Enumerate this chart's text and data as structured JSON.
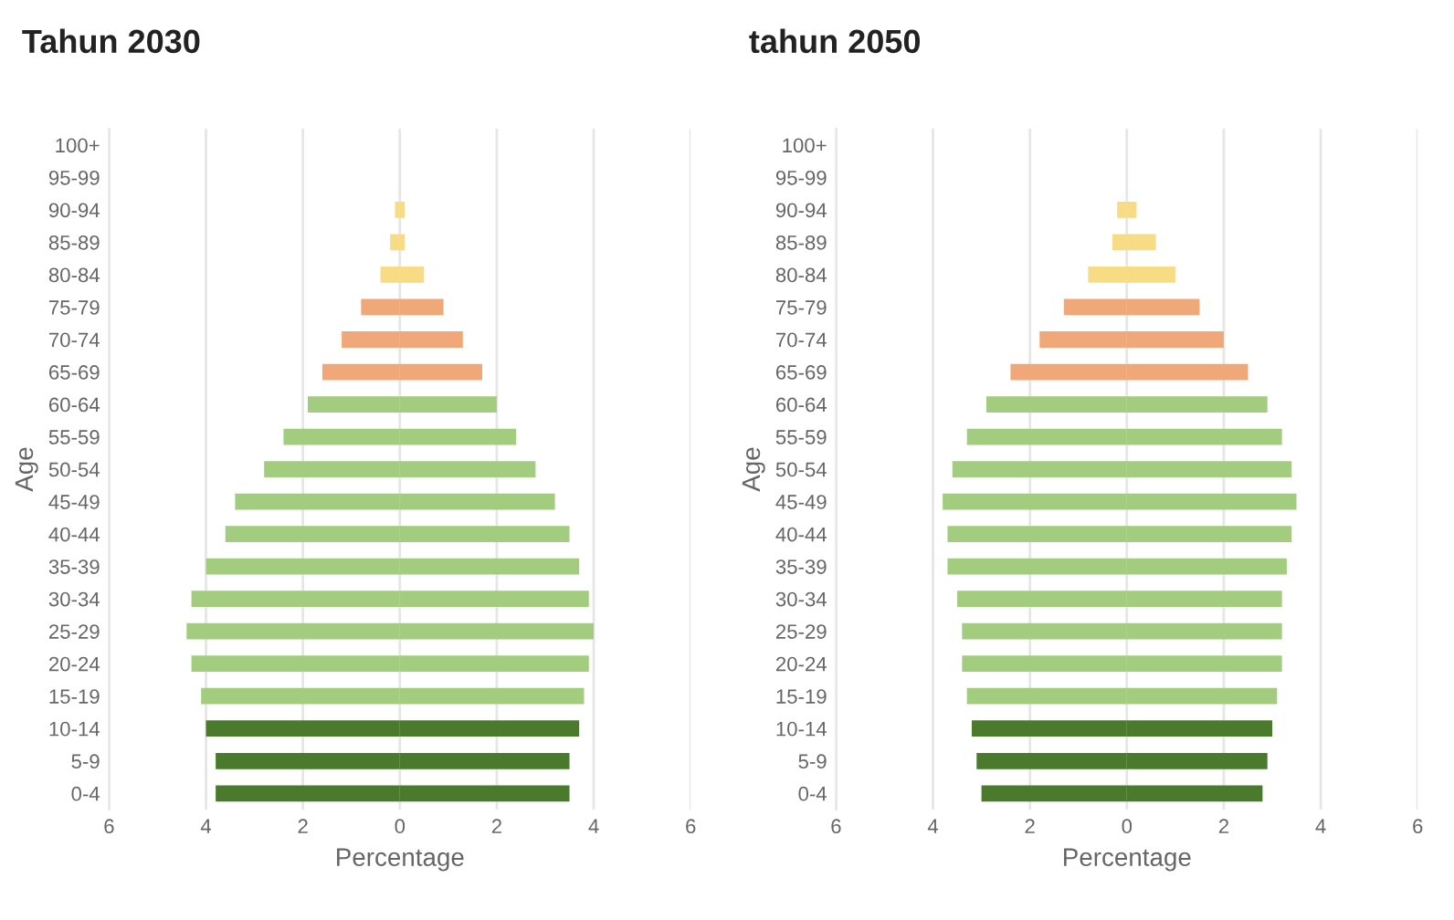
{
  "chart_data": [
    {
      "type": "bar",
      "orientation": "horizontal",
      "stacked": true,
      "title": "Tahun 2030",
      "xlabel": "Percentage",
      "ylabel": "Age",
      "grid": "x",
      "categories": [
        "100+",
        "95-99",
        "90-94",
        "85-89",
        "80-84",
        "75-79",
        "70-74",
        "65-69",
        "60-64",
        "55-59",
        "50-54",
        "45-49",
        "40-44",
        "35-39",
        "30-34",
        "25-29",
        "20-24",
        "15-19",
        "10-14",
        "5-9",
        "0-4"
      ],
      "xlim": [
        -6,
        6
      ],
      "xticks": [
        {
          "value": -6,
          "label": "6"
        },
        {
          "value": -4,
          "label": "4"
        },
        {
          "value": -2,
          "label": "2"
        },
        0,
        2,
        4,
        6
      ],
      "series": [
        {
          "values": [
            0,
            0,
            -0.1,
            -0.2,
            -0.4,
            -0.8,
            -1.2,
            -1.6,
            -1.9,
            -2.4,
            -2.8,
            -3.4,
            -3.6,
            -4.0,
            -4.3,
            -4.4,
            -4.3,
            -4.1,
            -4.0,
            -3.8,
            -3.8
          ],
          "colors": [
            "#f7dc85",
            "#f7dc85",
            "#f7dc85",
            "#f7dc85",
            "#f7dc85",
            "#f0a878",
            "#f0a878",
            "#f0a878",
            "#a3cd7e",
            "#a3cd7e",
            "#a3cd7e",
            "#a3cd7e",
            "#a3cd7e",
            "#a3cd7e",
            "#a3cd7e",
            "#a3cd7e",
            "#a3cd7e",
            "#a3cd7e",
            "#4a7a2c",
            "#4a7a2c",
            "#4a7a2c"
          ]
        },
        {
          "values": [
            0,
            0,
            0.1,
            0.1,
            0.5,
            0.9,
            1.3,
            1.7,
            2.0,
            2.4,
            2.8,
            3.2,
            3.5,
            3.7,
            3.9,
            4.0,
            3.9,
            3.8,
            3.7,
            3.5,
            3.5
          ],
          "colors": [
            "#f7dc85",
            "#f7dc85",
            "#f7dc85",
            "#f7dc85",
            "#f7dc85",
            "#f0a878",
            "#f0a878",
            "#f0a878",
            "#a3cd7e",
            "#a3cd7e",
            "#a3cd7e",
            "#a3cd7e",
            "#a3cd7e",
            "#a3cd7e",
            "#a3cd7e",
            "#a3cd7e",
            "#a3cd7e",
            "#a3cd7e",
            "#4a7a2c",
            "#4a7a2c",
            "#4a7a2c"
          ]
        }
      ]
    },
    {
      "type": "bar",
      "orientation": "horizontal",
      "stacked": true,
      "title": "tahun 2050",
      "xlabel": "Percentage",
      "ylabel": "Age",
      "grid": "x",
      "categories": [
        "100+",
        "95-99",
        "90-94",
        "85-89",
        "80-84",
        "75-79",
        "70-74",
        "65-69",
        "60-64",
        "55-59",
        "50-54",
        "45-49",
        "40-44",
        "35-39",
        "30-34",
        "25-29",
        "20-24",
        "15-19",
        "10-14",
        "5-9",
        "0-4"
      ],
      "xlim": [
        -6,
        6
      ],
      "xticks": [
        {
          "value": -6,
          "label": "6"
        },
        {
          "value": -4,
          "label": "4"
        },
        {
          "value": -2,
          "label": "2"
        },
        0,
        2,
        4,
        6
      ],
      "series": [
        {
          "values": [
            0,
            0,
            -0.2,
            -0.3,
            -0.8,
            -1.3,
            -1.8,
            -2.4,
            -2.9,
            -3.3,
            -3.6,
            -3.8,
            -3.7,
            -3.7,
            -3.5,
            -3.4,
            -3.4,
            -3.3,
            -3.2,
            -3.1,
            -3.0
          ],
          "colors": [
            "#f7dc85",
            "#f7dc85",
            "#f7dc85",
            "#f7dc85",
            "#f7dc85",
            "#f0a878",
            "#f0a878",
            "#f0a878",
            "#a3cd7e",
            "#a3cd7e",
            "#a3cd7e",
            "#a3cd7e",
            "#a3cd7e",
            "#a3cd7e",
            "#a3cd7e",
            "#a3cd7e",
            "#a3cd7e",
            "#a3cd7e",
            "#4a7a2c",
            "#4a7a2c",
            "#4a7a2c"
          ]
        },
        {
          "values": [
            0,
            0,
            0.2,
            0.6,
            1.0,
            1.5,
            2.0,
            2.5,
            2.9,
            3.2,
            3.4,
            3.5,
            3.4,
            3.3,
            3.2,
            3.2,
            3.2,
            3.1,
            3.0,
            2.9,
            2.8
          ],
          "colors": [
            "#f7dc85",
            "#f7dc85",
            "#f7dc85",
            "#f7dc85",
            "#f7dc85",
            "#f0a878",
            "#f0a878",
            "#f0a878",
            "#a3cd7e",
            "#a3cd7e",
            "#a3cd7e",
            "#a3cd7e",
            "#a3cd7e",
            "#a3cd7e",
            "#a3cd7e",
            "#a3cd7e",
            "#a3cd7e",
            "#a3cd7e",
            "#4a7a2c",
            "#4a7a2c",
            "#4a7a2c"
          ]
        }
      ]
    }
  ]
}
